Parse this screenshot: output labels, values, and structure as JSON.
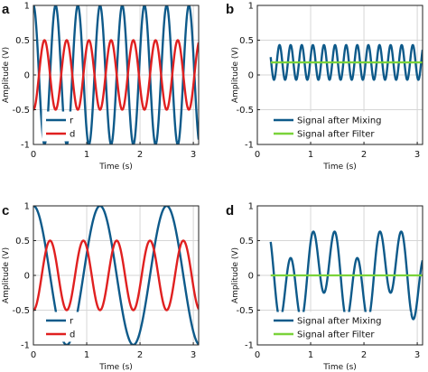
{
  "colors": {
    "blue": "#0e5a8a",
    "red": "#e02020",
    "green": "#7ad33a"
  },
  "chart_data": [
    {
      "type": "line",
      "panel": "a",
      "xlabel": "Time (s)",
      "ylabel": "Amplitude (V)",
      "xlim": [
        0,
        3.1
      ],
      "ylim": [
        -1,
        1
      ],
      "xticks": [
        0,
        1,
        2,
        3
      ],
      "xtick_labels": [
        "0",
        "1",
        "2",
        "3"
      ],
      "yticks": [
        -1,
        -0.5,
        0,
        0.5,
        1
      ],
      "ytick_labels": [
        "-1",
        "-0.5",
        "0",
        "0.5",
        "1"
      ],
      "grid": true,
      "legend_position": "bottom-left",
      "series": [
        {
          "name": "r",
          "color": "blue",
          "function": "cos",
          "amplitude": 1.0,
          "frequency_hz": 2.4,
          "phase": 0,
          "offset": 0
        },
        {
          "name": "d",
          "color": "red",
          "function": "cos",
          "amplitude": 0.5,
          "frequency_hz": 2.4,
          "phase": 3.14159,
          "offset": 0
        }
      ],
      "legend_labels": [
        "r",
        "d"
      ]
    },
    {
      "type": "line",
      "panel": "b",
      "xlabel": "Time (s)",
      "ylabel": "Amplitude (V)",
      "xlim": [
        0,
        3.1
      ],
      "ylim": [
        -1,
        1
      ],
      "xticks": [
        0,
        1,
        2,
        3
      ],
      "xtick_labels": [
        "0",
        "1",
        "2",
        "3"
      ],
      "yticks": [
        -1,
        -0.5,
        0,
        0.5,
        1
      ],
      "ytick_labels": [
        "-1",
        "-0.5",
        "0",
        "0.5",
        "1"
      ],
      "grid": true,
      "legend_position": "bottom",
      "x_start": 0.25,
      "series": [
        {
          "name": "Signal after Mixing",
          "color": "blue",
          "function": "cos",
          "amplitude": 0.25,
          "frequency_hz": 4.8,
          "phase": 0,
          "offset": 0.18
        },
        {
          "name": "Signal after Filter",
          "color": "green",
          "function": "const",
          "amplitude": 0,
          "frequency_hz": 0,
          "phase": 0,
          "offset": 0.18
        }
      ],
      "legend_labels": [
        "Signal after Mixing",
        "Signal after Filter"
      ]
    },
    {
      "type": "line",
      "panel": "c",
      "xlabel": "Time (s)",
      "ylabel": "Amplitude (V)",
      "xlim": [
        0,
        3.1
      ],
      "ylim": [
        -1,
        1
      ],
      "xticks": [
        0,
        1,
        2,
        3
      ],
      "xtick_labels": [
        "0",
        "1",
        "2",
        "3"
      ],
      "yticks": [
        -1,
        -0.5,
        0,
        0.5,
        1
      ],
      "ytick_labels": [
        "-1",
        "-0.5",
        "0",
        "0.5",
        "1"
      ],
      "grid": true,
      "legend_position": "bottom-left",
      "series": [
        {
          "name": "r",
          "color": "blue",
          "function": "cos",
          "amplitude": 1.0,
          "frequency_hz": 0.8,
          "phase": 0,
          "offset": 0
        },
        {
          "name": "d",
          "color": "red",
          "function": "cos",
          "amplitude": 0.5,
          "frequency_hz": 1.6,
          "phase": 3.14159,
          "offset": 0
        }
      ],
      "legend_labels": [
        "r",
        "d"
      ]
    },
    {
      "type": "line",
      "panel": "d",
      "xlabel": "Time (s)",
      "ylabel": "Amplitude (V)",
      "xlim": [
        0,
        3.1
      ],
      "ylim": [
        -1,
        1
      ],
      "xticks": [
        0,
        1,
        2,
        3
      ],
      "xtick_labels": [
        "0",
        "1",
        "2",
        "3"
      ],
      "yticks": [
        -1,
        -0.5,
        0,
        0.5,
        1
      ],
      "ytick_labels": [
        "-1",
        "-0.5",
        "0",
        "0.5",
        "1"
      ],
      "grid": true,
      "legend_position": "bottom",
      "x_start": 0.25,
      "series": [
        {
          "name": "Signal after Mixing",
          "color": "blue",
          "function": "mix2",
          "amplitude": 0.25,
          "frequency_hz": 0.8,
          "frequency2_hz": 2.4,
          "phase": 3.14159,
          "offset": 0
        },
        {
          "name": "Signal after Filter",
          "color": "green",
          "function": "const",
          "amplitude": 0,
          "frequency_hz": 0,
          "phase": 0,
          "offset": 0
        }
      ],
      "legend_labels": [
        "Signal after Mixing",
        "Signal after Filter"
      ]
    }
  ]
}
